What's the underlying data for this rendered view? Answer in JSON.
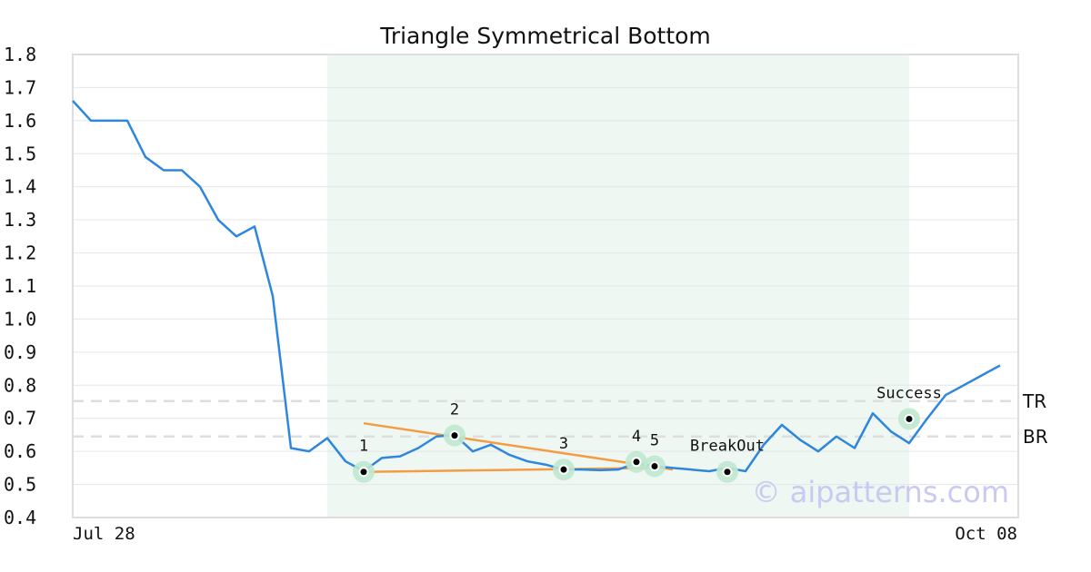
{
  "chart_data": {
    "type": "line",
    "title": "Triangle Symmetrical Bottom",
    "xlabel": "",
    "ylabel": "",
    "ylim": [
      0.4,
      1.8
    ],
    "grid": true,
    "x_tick_labels": [
      "Jul 28",
      "Oct 08"
    ],
    "y_ticks": [
      "0.4",
      "0.5",
      "0.6",
      "0.7",
      "0.8",
      "0.9",
      "1.0",
      "1.1",
      "1.2",
      "1.3",
      "1.4",
      "1.5",
      "1.6",
      "1.7",
      "1.8"
    ],
    "x_range": [
      0,
      52
    ],
    "series": [
      {
        "color": "#2e86de",
        "x": [
          0,
          1,
          2,
          3,
          4,
          5,
          6,
          7,
          8,
          9,
          10,
          11,
          12,
          13,
          14,
          15,
          16,
          17,
          18,
          19,
          20,
          21,
          22,
          23,
          24,
          25,
          26,
          27,
          28,
          29,
          30,
          31,
          32,
          33,
          34,
          35,
          36,
          37,
          38,
          39,
          40,
          41,
          42,
          43,
          44,
          45,
          46,
          47,
          48,
          49,
          50,
          51
        ],
        "values": [
          1.66,
          1.6,
          1.6,
          1.6,
          1.49,
          1.45,
          1.45,
          1.4,
          1.3,
          1.25,
          1.28,
          1.07,
          0.61,
          0.6,
          0.64,
          0.57,
          0.54,
          0.58,
          0.585,
          0.61,
          0.645,
          0.65,
          0.6,
          0.62,
          0.59,
          0.57,
          0.56,
          0.545,
          0.545,
          0.543,
          0.545,
          0.565,
          0.555,
          0.55,
          0.545,
          0.54,
          0.55,
          0.54,
          0.62,
          0.68,
          0.635,
          0.6,
          0.645,
          0.61,
          0.715,
          0.66,
          0.625,
          0.7,
          0.77,
          0.8,
          0.83,
          0.86
        ]
      }
    ],
    "pattern_region": {
      "x_start": 14,
      "x_end": 46,
      "color": "#eef7f2"
    },
    "trendlines": [
      {
        "color": "#f39c42",
        "x": [
          16,
          33
        ],
        "values": [
          0.685,
          0.545
        ]
      },
      {
        "color": "#f39c42",
        "x": [
          16,
          32
        ],
        "values": [
          0.538,
          0.55
        ]
      }
    ],
    "levels": [
      {
        "label": "TR",
        "value": 0.752
      },
      {
        "label": "BR",
        "value": 0.645
      }
    ],
    "points": [
      {
        "label": "1",
        "x": 16,
        "value": 0.538
      },
      {
        "label": "2",
        "x": 21,
        "value": 0.648
      },
      {
        "label": "3",
        "x": 27,
        "value": 0.545
      },
      {
        "label": "4",
        "x": 31,
        "value": 0.568
      },
      {
        "label": "5",
        "x": 32,
        "value": 0.555
      },
      {
        "label": "BreakOut",
        "x": 36,
        "value": 0.538
      },
      {
        "label": "Success",
        "x": 46,
        "value": 0.698
      }
    ],
    "watermark": "© aipatterns.com"
  }
}
